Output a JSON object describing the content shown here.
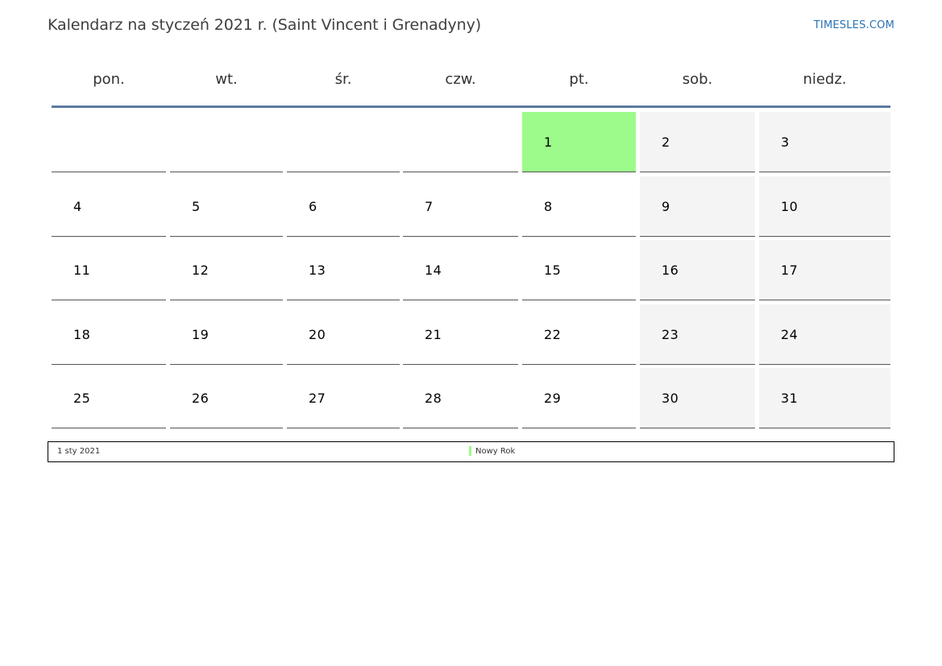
{
  "title": "Kalendarz na styczeń 2021 r. (Saint Vincent i Grenadyny)",
  "site": "TIMESLES.COM",
  "weekdays": [
    "pon.",
    "wt.",
    "śr.",
    "czw.",
    "pt.",
    "sob.",
    "niedz."
  ],
  "weeks": [
    [
      "",
      "",
      "",
      "",
      "1",
      "2",
      "3"
    ],
    [
      "4",
      "5",
      "6",
      "7",
      "8",
      "9",
      "10"
    ],
    [
      "11",
      "12",
      "13",
      "14",
      "15",
      "16",
      "17"
    ],
    [
      "18",
      "19",
      "20",
      "21",
      "22",
      "23",
      "24"
    ],
    [
      "25",
      "26",
      "27",
      "28",
      "29",
      "30",
      "31"
    ]
  ],
  "holiday_day": "1",
  "colors": {
    "holiday": "#9cfb8a",
    "weekend": "#f4f4f4",
    "header_rule": "#5b7aa0",
    "link": "#2a73b8"
  },
  "legend": {
    "date": "1 sty 2021",
    "name": "Nowy Rok"
  }
}
